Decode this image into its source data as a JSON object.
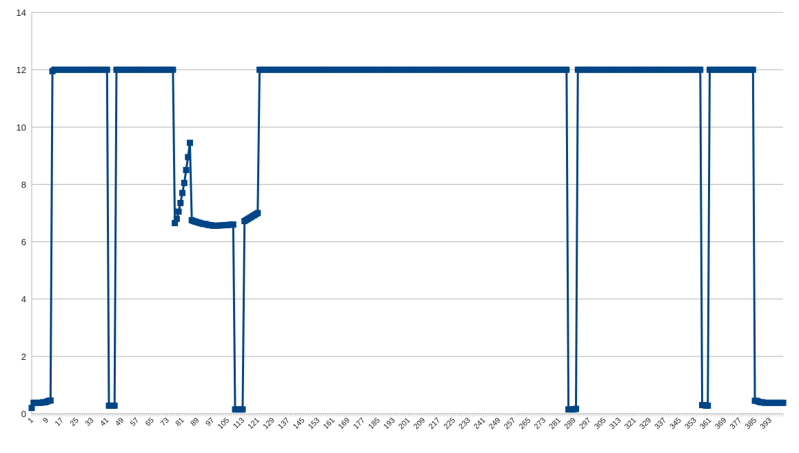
{
  "chart_data": {
    "type": "line",
    "title": "",
    "xlabel": "",
    "ylabel": "",
    "ylim": [
      0,
      14
    ],
    "yticks": [
      0,
      2,
      4,
      6,
      8,
      10,
      12,
      14
    ],
    "xlim": [
      1,
      400
    ],
    "xtick_labels": [
      1,
      9,
      17,
      25,
      33,
      41,
      49,
      57,
      65,
      73,
      81,
      89,
      97,
      105,
      113,
      121,
      129,
      137,
      145,
      153,
      161,
      169,
      177,
      185,
      193,
      201,
      209,
      217,
      225,
      233,
      241,
      249,
      257,
      265,
      273,
      281,
      289,
      297,
      305,
      313,
      321,
      329,
      337,
      345,
      353,
      361,
      369,
      377,
      385,
      393
    ],
    "grid": true,
    "legend": "none",
    "series": [
      {
        "color": "#004586",
        "marker": "square",
        "points": [
          [
            1,
            0.2
          ],
          [
            2,
            0.38
          ],
          [
            3,
            0.38
          ],
          [
            4,
            0.38
          ],
          [
            5,
            0.38
          ],
          [
            6,
            0.38
          ],
          [
            7,
            0.4
          ],
          [
            8,
            0.4
          ],
          [
            9,
            0.42
          ],
          [
            10,
            0.45
          ],
          [
            11,
            0.46
          ],
          [
            12,
            11.95
          ],
          [
            13,
            12.0
          ],
          [
            14,
            12.0
          ],
          [
            40,
            12.0
          ],
          [
            41,
            12.0
          ],
          [
            42,
            0.28
          ],
          [
            43,
            0.28
          ],
          [
            44,
            0.28
          ],
          [
            45,
            0.28
          ],
          [
            46,
            12.0
          ],
          [
            47,
            12.0
          ],
          [
            75,
            12.0
          ],
          [
            76,
            12.0
          ],
          [
            77,
            6.65
          ],
          [
            78,
            6.8
          ],
          [
            79,
            7.05
          ],
          [
            80,
            7.35
          ],
          [
            81,
            7.7
          ],
          [
            82,
            8.05
          ],
          [
            83,
            8.5
          ],
          [
            84,
            8.95
          ],
          [
            85,
            9.45
          ],
          [
            86,
            6.75
          ],
          [
            87,
            6.72
          ],
          [
            88,
            6.7
          ],
          [
            89,
            6.68
          ],
          [
            90,
            6.66
          ],
          [
            91,
            6.64
          ],
          [
            92,
            6.62
          ],
          [
            93,
            6.62
          ],
          [
            94,
            6.6
          ],
          [
            95,
            6.58
          ],
          [
            96,
            6.58
          ],
          [
            97,
            6.56
          ],
          [
            98,
            6.56
          ],
          [
            99,
            6.56
          ],
          [
            100,
            6.56
          ],
          [
            101,
            6.57
          ],
          [
            102,
            6.57
          ],
          [
            103,
            6.58
          ],
          [
            104,
            6.58
          ],
          [
            105,
            6.58
          ],
          [
            106,
            6.59
          ],
          [
            107,
            6.6
          ],
          [
            108,
            6.6
          ],
          [
            109,
            0.15
          ],
          [
            110,
            0.15
          ],
          [
            111,
            0.15
          ],
          [
            112,
            0.15
          ],
          [
            113,
            0.15
          ],
          [
            114,
            6.72
          ],
          [
            115,
            6.76
          ],
          [
            116,
            6.8
          ],
          [
            117,
            6.84
          ],
          [
            118,
            6.88
          ],
          [
            119,
            6.92
          ],
          [
            120,
            6.96
          ],
          [
            121,
            7.0
          ],
          [
            122,
            12.0
          ],
          [
            123,
            12.0
          ],
          [
            284,
            12.0
          ],
          [
            285,
            12.0
          ],
          [
            286,
            0.15
          ],
          [
            287,
            0.15
          ],
          [
            288,
            0.15
          ],
          [
            289,
            0.15
          ],
          [
            290,
            0.17
          ],
          [
            291,
            12.0
          ],
          [
            292,
            12.0
          ],
          [
            355,
            12.0
          ],
          [
            356,
            12.0
          ],
          [
            357,
            0.3
          ],
          [
            358,
            0.3
          ],
          [
            359,
            0.28
          ],
          [
            360,
            0.28
          ],
          [
            361,
            12.0
          ],
          [
            362,
            12.0
          ],
          [
            383,
            12.0
          ],
          [
            384,
            12.0
          ],
          [
            385,
            0.45
          ],
          [
            386,
            0.45
          ],
          [
            387,
            0.42
          ],
          [
            388,
            0.4
          ],
          [
            389,
            0.4
          ],
          [
            390,
            0.38
          ],
          [
            391,
            0.38
          ],
          [
            392,
            0.38
          ],
          [
            393,
            0.38
          ],
          [
            394,
            0.38
          ],
          [
            395,
            0.38
          ],
          [
            396,
            0.38
          ],
          [
            397,
            0.38
          ],
          [
            398,
            0.38
          ],
          [
            399,
            0.38
          ],
          [
            400,
            0.38
          ]
        ]
      }
    ]
  }
}
